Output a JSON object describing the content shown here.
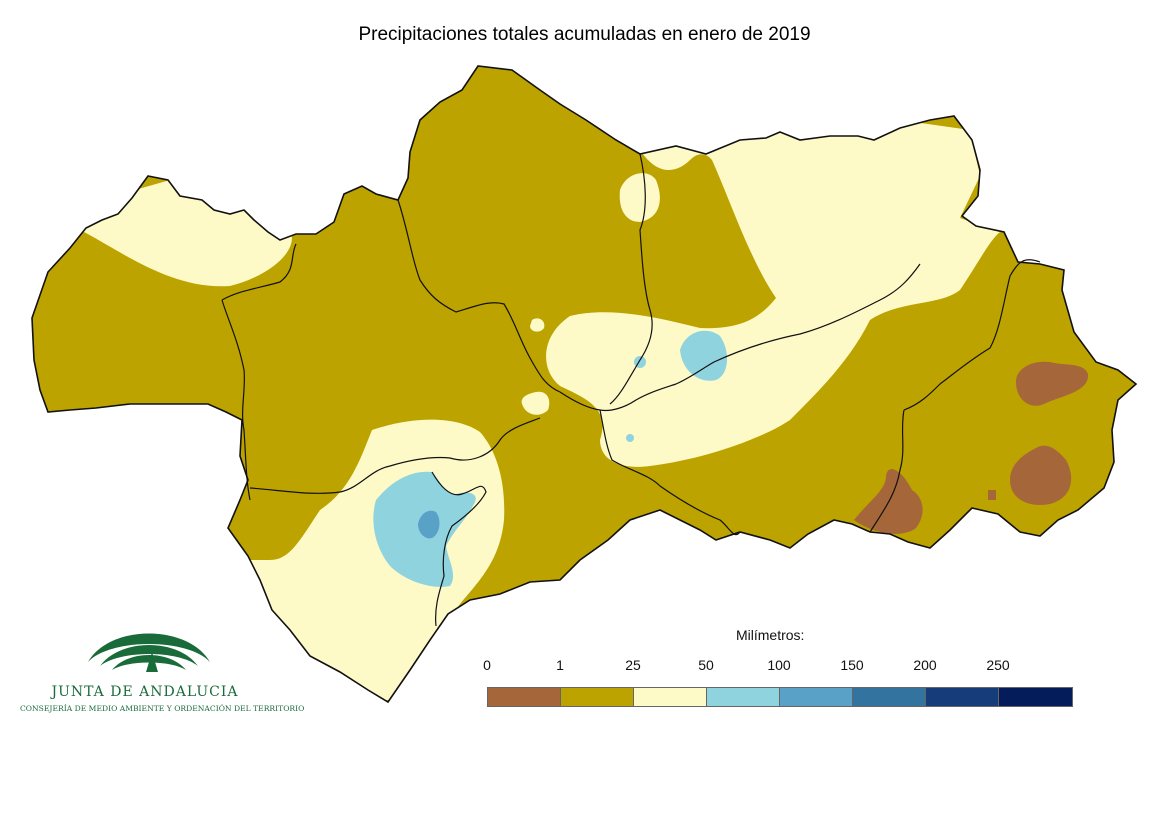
{
  "title": "Precipitaciones totales acumuladas en enero de 2019",
  "legend": {
    "title": "Milímetros:",
    "thresholds": [
      "0",
      "1",
      "25",
      "50",
      "100",
      "150",
      "200",
      "250"
    ],
    "classes": [
      {
        "range": "0-1",
        "color": "#a5673a"
      },
      {
        "range": "1-25",
        "color": "#bda300"
      },
      {
        "range": "25-50",
        "color": "#fdfac8"
      },
      {
        "range": "50-100",
        "color": "#8fd3df"
      },
      {
        "range": "100-150",
        "color": "#5aa1c8"
      },
      {
        "range": "150-200",
        "color": "#32739f"
      },
      {
        "range": "200-250",
        "color": "#163c7a"
      },
      {
        "range": ">250",
        "color": "#041d5a"
      }
    ]
  },
  "logo": {
    "name": "JUNTA DE ANDALUCIA",
    "department": "CONSEJERÍA DE MEDIO AMBIENTE Y ORDENACIÓN DEL TERRITORIO",
    "color": "#1a6b3a"
  }
}
